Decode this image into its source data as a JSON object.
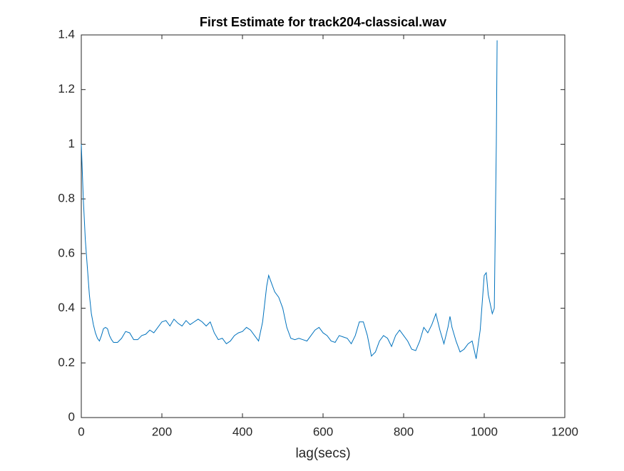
{
  "chart_data": {
    "type": "line",
    "title": "First Estimate for track204-classical.wav",
    "x_label": "lag(secs)",
    "x": [
      0,
      5,
      10,
      15,
      20,
      25,
      30,
      35,
      40,
      45,
      50,
      55,
      60,
      65,
      70,
      75,
      80,
      90,
      100,
      110,
      120,
      130,
      140,
      150,
      160,
      170,
      180,
      190,
      200,
      210,
      220,
      230,
      240,
      250,
      260,
      270,
      280,
      290,
      300,
      310,
      320,
      330,
      340,
      350,
      360,
      370,
      380,
      390,
      400,
      410,
      420,
      430,
      440,
      450,
      460,
      465,
      470,
      480,
      490,
      500,
      510,
      520,
      530,
      540,
      550,
      560,
      570,
      580,
      590,
      600,
      610,
      620,
      630,
      640,
      650,
      660,
      670,
      680,
      690,
      700,
      710,
      720,
      730,
      740,
      750,
      760,
      770,
      780,
      790,
      800,
      810,
      820,
      830,
      840,
      850,
      860,
      870,
      880,
      890,
      900,
      910,
      915,
      920,
      930,
      940,
      950,
      960,
      970,
      980,
      990,
      1000,
      1005,
      1010,
      1020,
      1025,
      1030,
      1032
    ],
    "series": [
      {
        "color": "#0072bd",
        "values": [
          1.0,
          0.8,
          0.65,
          0.55,
          0.45,
          0.38,
          0.34,
          0.31,
          0.29,
          0.28,
          0.3,
          0.325,
          0.33,
          0.325,
          0.3,
          0.285,
          0.275,
          0.275,
          0.29,
          0.315,
          0.31,
          0.285,
          0.285,
          0.3,
          0.305,
          0.32,
          0.31,
          0.33,
          0.35,
          0.355,
          0.335,
          0.36,
          0.345,
          0.335,
          0.355,
          0.34,
          0.35,
          0.36,
          0.35,
          0.335,
          0.35,
          0.31,
          0.285,
          0.29,
          0.27,
          0.28,
          0.3,
          0.31,
          0.315,
          0.33,
          0.32,
          0.3,
          0.28,
          0.35,
          0.48,
          0.52,
          0.5,
          0.46,
          0.44,
          0.4,
          0.33,
          0.29,
          0.285,
          0.29,
          0.285,
          0.28,
          0.3,
          0.32,
          0.33,
          0.31,
          0.3,
          0.28,
          0.275,
          0.3,
          0.295,
          0.29,
          0.27,
          0.3,
          0.35,
          0.35,
          0.3,
          0.225,
          0.24,
          0.28,
          0.3,
          0.29,
          0.26,
          0.3,
          0.32,
          0.3,
          0.28,
          0.25,
          0.245,
          0.28,
          0.33,
          0.31,
          0.34,
          0.38,
          0.32,
          0.27,
          0.33,
          0.37,
          0.33,
          0.28,
          0.24,
          0.25,
          0.27,
          0.28,
          0.215,
          0.32,
          0.52,
          0.53,
          0.45,
          0.38,
          0.4,
          1.0,
          1.38
        ]
      }
    ],
    "xlim": [
      0,
      1200
    ],
    "xticks": [
      0,
      200,
      400,
      600,
      800,
      1000,
      1200
    ],
    "ylim": [
      0,
      1.4
    ],
    "yticks": [
      0,
      0.2,
      0.4,
      0.6,
      0.8,
      1,
      1.2,
      1.4
    ]
  }
}
